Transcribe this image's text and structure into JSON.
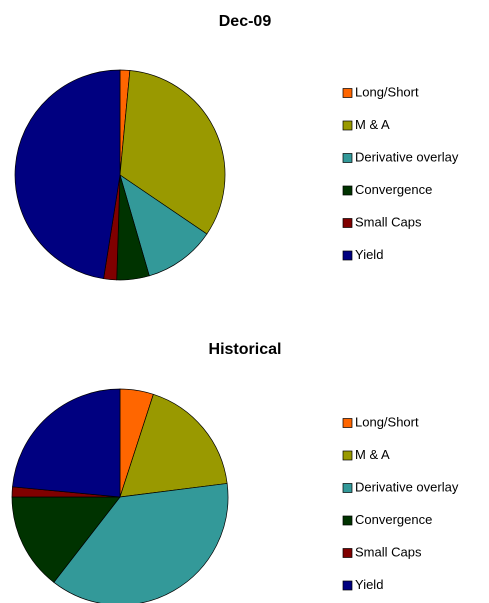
{
  "chart_data": [
    {
      "type": "pie",
      "title": "Dec-09",
      "categories": [
        "Long/Short",
        "M & A",
        "Derivative overlay",
        "Convergence",
        "Small Caps",
        "Yield"
      ],
      "values": [
        1.5,
        33,
        11,
        5,
        2,
        47.5
      ],
      "colors": [
        "#ff6600",
        "#999900",
        "#339999",
        "#003300",
        "#800000",
        "#000080"
      ]
    },
    {
      "type": "pie",
      "title": "Historical",
      "categories": [
        "Long/Short",
        "M & A",
        "Derivative overlay",
        "Convergence",
        "Small Caps",
        "Yield"
      ],
      "values": [
        5,
        18,
        37.5,
        14.5,
        1.5,
        23.5
      ],
      "colors": [
        "#ff6600",
        "#999900",
        "#339999",
        "#003300",
        "#800000",
        "#000080"
      ]
    }
  ]
}
